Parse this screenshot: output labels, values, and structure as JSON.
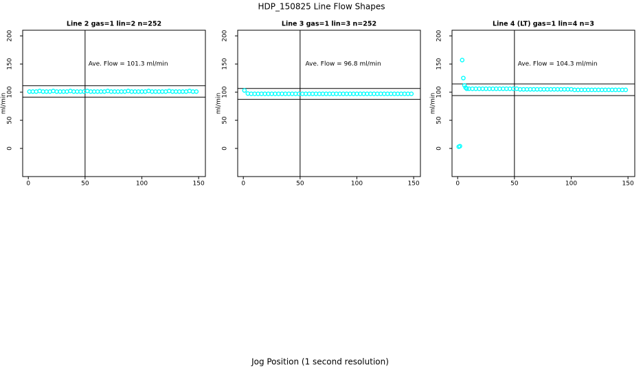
{
  "title": "HDP_150825  Line Flow Shapes",
  "xlabel": "Jog Position (1 second resolution)",
  "chart_data": [
    {
      "type": "scatter",
      "title": "Line 2 gas=1 lin=2 n=252",
      "ylabel": "ml/min",
      "annotation": "Ave. Flow =  101.3  ml/min",
      "xlim": [
        -4.96,
        155.96
      ],
      "ylim": [
        -50,
        210
      ],
      "xticks": [
        0,
        50,
        100,
        150
      ],
      "yticks": [
        0,
        50,
        100,
        150,
        200
      ],
      "hlines": [
        111.4,
        91.2
      ],
      "vline": 50,
      "color": "#00ffff",
      "x": [
        1,
        4,
        7,
        10,
        13,
        16,
        19,
        22,
        25,
        28,
        31,
        34,
        37,
        40,
        43,
        46,
        49,
        52,
        55,
        58,
        61,
        64,
        67,
        70,
        73,
        76,
        79,
        82,
        85,
        88,
        91,
        94,
        97,
        100,
        103,
        106,
        109,
        112,
        115,
        118,
        121,
        124,
        127,
        130,
        133,
        136,
        139,
        142,
        145,
        148
      ],
      "values": [
        101,
        101,
        101,
        102,
        101,
        101,
        101,
        102,
        101,
        101,
        101,
        101,
        102,
        101,
        101,
        101,
        101,
        102,
        101,
        101,
        101,
        101,
        101,
        102,
        101,
        101,
        101,
        101,
        101,
        102,
        101,
        101,
        101,
        101,
        101,
        102,
        101,
        101,
        101,
        101,
        101,
        102,
        101,
        101,
        101,
        101,
        101,
        102,
        101,
        101
      ]
    },
    {
      "type": "scatter",
      "title": "Line 3 gas=1 lin=3 n=252",
      "ylabel": "ml/min",
      "annotation": "Ave. Flow =  96.8  ml/min",
      "xlim": [
        -4.96,
        155.96
      ],
      "ylim": [
        -50,
        210
      ],
      "xticks": [
        0,
        50,
        100,
        150
      ],
      "yticks": [
        0,
        50,
        100,
        150,
        200
      ],
      "hlines": [
        106.5,
        87.1
      ],
      "vline": 50,
      "color": "#00ffff",
      "x": [
        1,
        4,
        7,
        10,
        13,
        16,
        19,
        22,
        25,
        28,
        31,
        34,
        37,
        40,
        43,
        46,
        49,
        52,
        55,
        58,
        61,
        64,
        67,
        70,
        73,
        76,
        79,
        82,
        85,
        88,
        91,
        94,
        97,
        100,
        103,
        106,
        109,
        112,
        115,
        118,
        121,
        124,
        127,
        130,
        133,
        136,
        139,
        142,
        145,
        148
      ],
      "values": [
        103,
        97.5,
        97,
        97,
        97,
        97,
        97,
        97,
        97,
        97,
        97,
        97,
        97,
        97,
        97,
        97,
        97,
        97,
        97,
        97,
        97,
        97,
        97,
        97,
        97,
        97,
        97,
        97,
        97,
        97,
        97,
        97,
        97,
        97,
        97,
        97,
        97,
        97,
        97,
        97,
        97,
        97,
        97,
        97,
        97,
        97,
        97,
        97,
        97,
        97
      ]
    },
    {
      "type": "scatter",
      "title": "Line 4 (LT) gas=1 lin=4 n=3",
      "ylabel": "ml/min",
      "annotation": "Ave. Flow =  104.3  ml/min",
      "xlim": [
        -4.96,
        155.96
      ],
      "ylim": [
        -50,
        210
      ],
      "xticks": [
        0,
        50,
        100,
        150
      ],
      "yticks": [
        0,
        50,
        100,
        150,
        200
      ],
      "hlines": [
        114.7,
        93.9
      ],
      "vline": 50,
      "color": "#00ffff",
      "x": [
        1,
        2,
        4,
        5,
        6,
        7,
        8,
        10,
        13,
        16,
        19,
        22,
        25,
        28,
        31,
        34,
        37,
        40,
        43,
        46,
        49,
        52,
        55,
        58,
        61,
        64,
        67,
        70,
        73,
        76,
        79,
        82,
        85,
        88,
        91,
        94,
        97,
        100,
        103,
        106,
        109,
        112,
        115,
        118,
        121,
        124,
        127,
        130,
        133,
        136,
        139,
        142,
        145,
        148
      ],
      "values": [
        3,
        4,
        157,
        125,
        112,
        108,
        106,
        106,
        106,
        106,
        106,
        106,
        106,
        106,
        106,
        106,
        106,
        106,
        106,
        106,
        106,
        106,
        105,
        105,
        105,
        105,
        105,
        105,
        105,
        105,
        105,
        105,
        105,
        105,
        105,
        105,
        105,
        105,
        104,
        104,
        104,
        104,
        104,
        104,
        104,
        104,
        104,
        104,
        104,
        104,
        104,
        104,
        104,
        104
      ]
    }
  ]
}
